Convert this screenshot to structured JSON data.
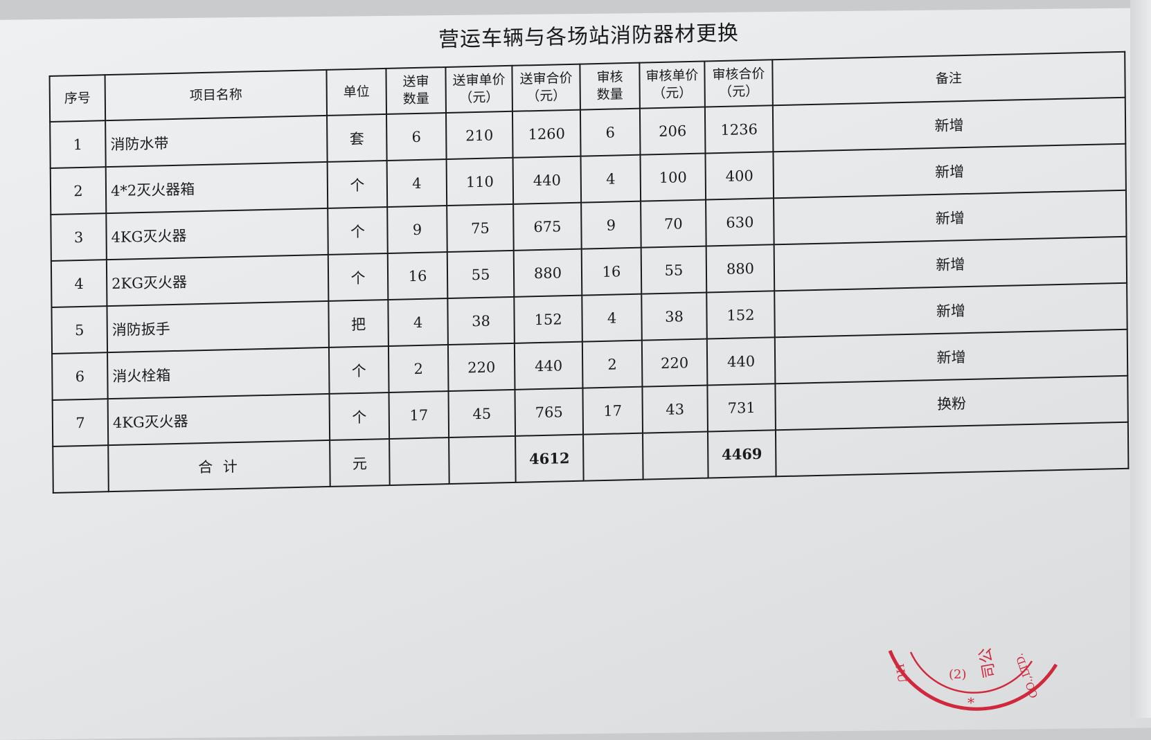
{
  "title": "营运车辆与各场站消防器材更换",
  "headers": [
    "序号",
    "项目名称",
    "单位",
    "送审\n数量",
    "送审单价\n（元）",
    "送审合价\n（元）",
    "审核\n数量",
    "审核单价\n（元）",
    "审核合价\n（元）",
    "备注"
  ],
  "rows": [
    [
      "1",
      "消防水带",
      "套",
      "6",
      "210",
      "1260",
      "6",
      "206",
      "1236",
      "新增"
    ],
    [
      "2",
      "4*2灭火器箱",
      "个",
      "4",
      "110",
      "440",
      "4",
      "100",
      "400",
      "新增"
    ],
    [
      "3",
      "4KG灭火器",
      "个",
      "9",
      "75",
      "675",
      "9",
      "70",
      "630",
      "新增"
    ],
    [
      "4",
      "2KG灭火器",
      "个",
      "16",
      "55",
      "880",
      "16",
      "55",
      "880",
      "新增"
    ],
    [
      "5",
      "消防扳手",
      "把",
      "4",
      "38",
      "152",
      "4",
      "38",
      "152",
      "新增"
    ],
    [
      "6",
      "消火栓箱",
      "个",
      "2",
      "220",
      "440",
      "2",
      "220",
      "440",
      "新增"
    ],
    [
      "7",
      "4KG灭火器",
      "个",
      "17",
      "45",
      "765",
      "17",
      "43",
      "731",
      "换粉"
    ]
  ],
  "total": {
    "label": "合 计",
    "unit": "元",
    "submitted_total": "4612",
    "audited_total": "4469"
  },
  "stamp": {
    "text": "HU ... CO.,LTD. 公司 (2) *",
    "color": "#d0283c"
  }
}
